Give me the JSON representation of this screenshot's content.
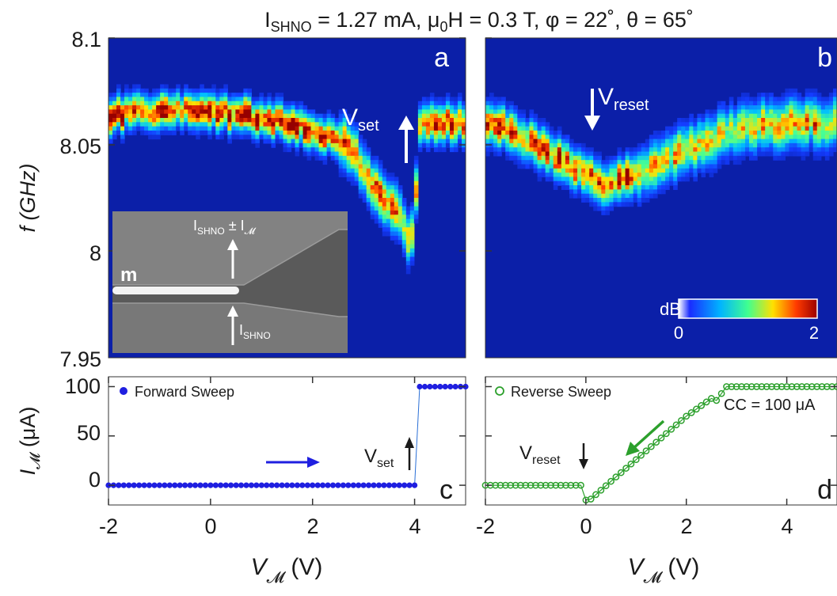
{
  "title": {
    "prefix": "I",
    "sub": "SHNO",
    "rest1": " = 1.27 mA, μ",
    "sub2": "0",
    "rest2": "H = 0.3 T, φ = 22˚, θ = 65˚"
  },
  "chart_data": [
    {
      "panel": "a",
      "type": "heatmap",
      "ylabel": "f (GHz)",
      "ylim": [
        7.95,
        8.1
      ],
      "yticks": [
        "8.1",
        "8.05",
        "8",
        "7.95"
      ],
      "xlim": [
        -2,
        5
      ],
      "colormap": "jet",
      "background_color": "#0b1fa8",
      "ridge": {
        "x": [
          -2.0,
          -1.5,
          -1.0,
          -0.5,
          0.0,
          0.5,
          1.0,
          1.5,
          2.0,
          2.5,
          2.8,
          3.0,
          3.2,
          3.4,
          3.6,
          3.8,
          3.9,
          4.0,
          4.1,
          4.5,
          5.0
        ],
        "f": [
          8.064,
          8.065,
          8.066,
          8.066,
          8.065,
          8.064,
          8.062,
          8.06,
          8.057,
          8.052,
          8.046,
          8.038,
          8.031,
          8.025,
          8.02,
          8.012,
          8.004,
          8.015,
          8.06,
          8.06,
          8.06
        ]
      },
      "annotations": [
        {
          "text": "V",
          "sub": "set",
          "arrow": "up",
          "x": 4.0
        },
        {
          "label": "a"
        }
      ],
      "inset": {
        "label_m": "m",
        "label_top": "I",
        "label_top_sub": "SHNO",
        "label_top_rest": " ± I",
        "label_top_sub2": "𝓜",
        "label_bottom": "I",
        "label_bottom_sub": "SHNO"
      }
    },
    {
      "panel": "b",
      "type": "heatmap",
      "ylim": [
        7.95,
        8.1
      ],
      "xlim": [
        -2,
        5
      ],
      "colormap": "jet",
      "ridge": {
        "x": [
          -2.0,
          -1.5,
          -1.0,
          -0.5,
          0.0,
          0.3,
          0.6,
          1.0,
          1.5,
          2.0,
          2.5,
          3.0,
          3.5,
          4.0,
          4.5,
          5.0
        ],
        "f": [
          8.061,
          8.057,
          8.05,
          8.043,
          8.035,
          8.031,
          8.032,
          8.036,
          8.042,
          8.048,
          8.053,
          8.056,
          8.058,
          8.059,
          8.06,
          8.06
        ]
      },
      "annotations": [
        {
          "text": "V",
          "sub": "reset",
          "arrow": "down",
          "x": 0.0
        },
        {
          "label": "b"
        }
      ],
      "colorbar": {
        "title": "dB",
        "min": "0",
        "max": "2",
        "range": [
          0,
          2
        ]
      }
    },
    {
      "panel": "c",
      "type": "scatter",
      "ylabel_main": "I",
      "ylabel_sub": "𝓜",
      "ylabel_unit": " (μA)",
      "xlabel_main": "V",
      "xlabel_sub": "𝓜",
      "xlabel_unit": " (V)",
      "xlim": [
        -2,
        5
      ],
      "ylim": [
        -20,
        110
      ],
      "xticks": [
        "-2",
        "0",
        "2",
        "4"
      ],
      "yticks": [
        "0",
        "50",
        "100"
      ],
      "legend": "Forward Sweep",
      "legend_position": "top-left",
      "series": [
        {
          "name": "Forward Sweep",
          "marker": "filled-circle",
          "color": "#1f1fe0",
          "x_start": -2.0,
          "x_end": 5.0,
          "x_step": 0.1,
          "rule": "0 μA for V < 4.0, 100 μA for V ≥ 4.1"
        }
      ],
      "annotations": [
        {
          "text": "V",
          "sub": "set",
          "arrow": "up",
          "x": 4.0
        },
        {
          "label": "c"
        }
      ]
    },
    {
      "panel": "d",
      "type": "scatter",
      "xlabel_main": "V",
      "xlabel_sub": "𝓜",
      "xlabel_unit": " (V)",
      "xlim": [
        -2,
        5
      ],
      "ylim": [
        -20,
        110
      ],
      "xticks": [
        "-2",
        "0",
        "2",
        "4"
      ],
      "legend": "Reverse Sweep",
      "legend_position": "top-left",
      "series": [
        {
          "name": "Reverse Sweep",
          "marker": "open-circle",
          "color": "#2ca02c",
          "x": [
            -2.0,
            -0.1,
            0.0,
            0.1,
            0.5,
            1.0,
            1.5,
            2.0,
            2.5,
            2.6,
            2.8,
            5.0
          ],
          "y": [
            0,
            0,
            -15,
            -14,
            4,
            26,
            48,
            70,
            88,
            86,
            100,
            100
          ]
        }
      ],
      "annotations": [
        {
          "text": "V",
          "sub": "reset",
          "arrow": "down",
          "x": 0.0
        },
        {
          "text": "CC = 100 μA"
        },
        {
          "label": "d"
        }
      ]
    }
  ]
}
